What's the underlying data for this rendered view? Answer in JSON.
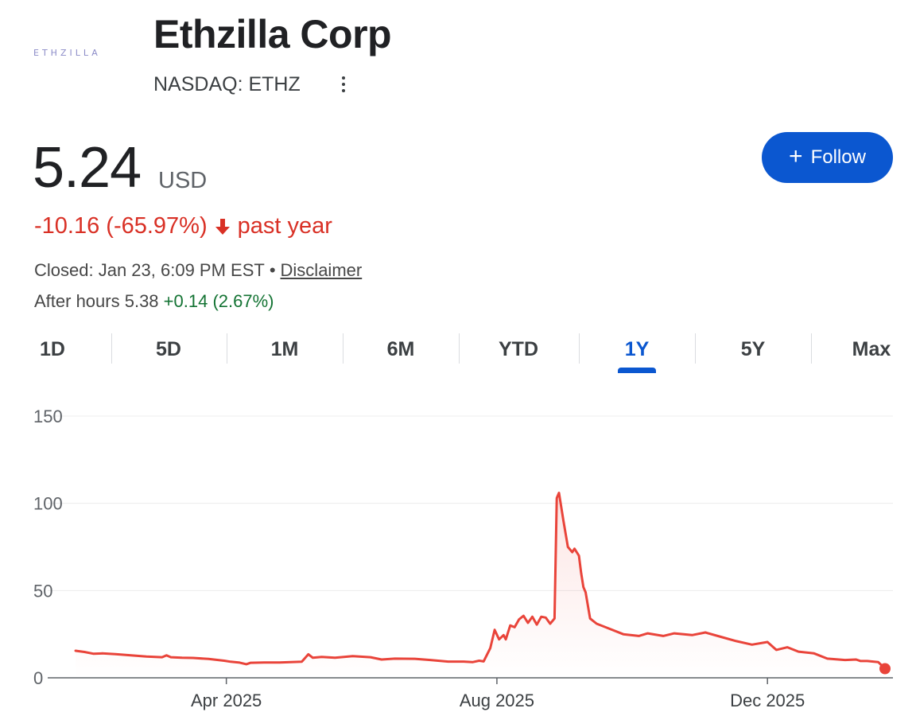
{
  "logo_text": "ETHZILLA",
  "company": {
    "name": "Ethzilla Corp",
    "ticker": "NASDAQ: ETHZ"
  },
  "quote": {
    "price": "5.24",
    "currency": "USD",
    "change": "-10.16 (-65.97%)",
    "period": "past year",
    "closed": "Closed: Jan 23, 6:09 PM EST",
    "bullet": "•",
    "disclaimer": "Disclaimer",
    "after_hours_label": "After hours 5.38",
    "after_hours_change": "+0.14 (2.67%)"
  },
  "follow_button": {
    "label": "Follow"
  },
  "colors": {
    "line": "#e9443a",
    "accent": "#0b57d0",
    "negative": "#d93025",
    "positive": "#137333"
  },
  "range_tabs": [
    {
      "label": "1D",
      "active": false
    },
    {
      "label": "5D",
      "active": false
    },
    {
      "label": "1M",
      "active": false
    },
    {
      "label": "6M",
      "active": false
    },
    {
      "label": "YTD",
      "active": false
    },
    {
      "label": "1Y",
      "active": true
    },
    {
      "label": "5Y",
      "active": false
    },
    {
      "label": "Max",
      "active": false
    }
  ],
  "chart_data": {
    "type": "line",
    "x_ticks": [
      "Apr 2025",
      "Aug 2025",
      "Dec 2025"
    ],
    "y_ticks": [
      0,
      50,
      100,
      150
    ],
    "ylim": [
      0,
      150
    ],
    "xlim": [
      "2025-01-23",
      "2026-01-23"
    ],
    "grid": true,
    "series": [
      {
        "values": [
          [
            "2025-01-23",
            15.5
          ],
          [
            "2025-01-27",
            14.8
          ],
          [
            "2025-01-31",
            13.8
          ],
          [
            "2025-02-04",
            14.0
          ],
          [
            "2025-02-10",
            13.6
          ],
          [
            "2025-02-17",
            12.9
          ],
          [
            "2025-02-24",
            12.2
          ],
          [
            "2025-03-03",
            11.8
          ],
          [
            "2025-03-05",
            12.9
          ],
          [
            "2025-03-07",
            11.8
          ],
          [
            "2025-03-12",
            11.5
          ],
          [
            "2025-03-17",
            11.4
          ],
          [
            "2025-03-24",
            10.8
          ],
          [
            "2025-03-31",
            9.8
          ],
          [
            "2025-04-03",
            9.2
          ],
          [
            "2025-04-07",
            8.7
          ],
          [
            "2025-04-10",
            7.8
          ],
          [
            "2025-04-12",
            8.6
          ],
          [
            "2025-04-18",
            8.8
          ],
          [
            "2025-04-25",
            8.8
          ],
          [
            "2025-05-05",
            9.2
          ],
          [
            "2025-05-08",
            13.5
          ],
          [
            "2025-05-10",
            11.5
          ],
          [
            "2025-05-14",
            12.0
          ],
          [
            "2025-05-20",
            11.5
          ],
          [
            "2025-05-28",
            12.4
          ],
          [
            "2025-06-05",
            11.8
          ],
          [
            "2025-06-10",
            10.5
          ],
          [
            "2025-06-16",
            11.0
          ],
          [
            "2025-06-25",
            10.9
          ],
          [
            "2025-07-02",
            10.2
          ],
          [
            "2025-07-10",
            9.3
          ],
          [
            "2025-07-17",
            9.3
          ],
          [
            "2025-07-21",
            9.0
          ],
          [
            "2025-07-24",
            9.8
          ],
          [
            "2025-07-26",
            9.4
          ],
          [
            "2025-07-29",
            17.0
          ],
          [
            "2025-07-31",
            27.5
          ],
          [
            "2025-08-02",
            22.0
          ],
          [
            "2025-08-04",
            24.5
          ],
          [
            "2025-08-05",
            22.0
          ],
          [
            "2025-08-07",
            30.0
          ],
          [
            "2025-08-09",
            29.0
          ],
          [
            "2025-08-11",
            33.5
          ],
          [
            "2025-08-13",
            35.5
          ],
          [
            "2025-08-15",
            31.5
          ],
          [
            "2025-08-17",
            35.0
          ],
          [
            "2025-08-19",
            30.5
          ],
          [
            "2025-08-21",
            35.0
          ],
          [
            "2025-08-23",
            34.5
          ],
          [
            "2025-08-25",
            31.0
          ],
          [
            "2025-08-27",
            34.0
          ],
          [
            "2025-08-28",
            103.0
          ],
          [
            "2025-08-29",
            106.0
          ],
          [
            "2025-08-31",
            90.0
          ],
          [
            "2025-09-02",
            75.0
          ],
          [
            "2025-09-04",
            72.0
          ],
          [
            "2025-09-05",
            74.0
          ],
          [
            "2025-09-07",
            70.0
          ],
          [
            "2025-09-08",
            60.0
          ],
          [
            "2025-09-09",
            52.0
          ],
          [
            "2025-09-10",
            49.0
          ],
          [
            "2025-09-12",
            34.0
          ],
          [
            "2025-09-15",
            31.0
          ],
          [
            "2025-09-20",
            28.5
          ],
          [
            "2025-09-27",
            25.0
          ],
          [
            "2025-10-04",
            24.0
          ],
          [
            "2025-10-08",
            25.5
          ],
          [
            "2025-10-15",
            24.0
          ],
          [
            "2025-10-20",
            25.5
          ],
          [
            "2025-10-28",
            24.5
          ],
          [
            "2025-11-03",
            26.0
          ],
          [
            "2025-11-10",
            23.5
          ],
          [
            "2025-11-17",
            21.0
          ],
          [
            "2025-11-24",
            19.0
          ],
          [
            "2025-12-01",
            20.5
          ],
          [
            "2025-12-05",
            16.0
          ],
          [
            "2025-12-10",
            17.5
          ],
          [
            "2025-12-15",
            15.0
          ],
          [
            "2025-12-22",
            14.0
          ],
          [
            "2025-12-28",
            11.0
          ],
          [
            "2026-01-05",
            10.2
          ],
          [
            "2026-01-10",
            10.5
          ],
          [
            "2026-01-12",
            9.6
          ],
          [
            "2026-01-15",
            9.6
          ],
          [
            "2026-01-20",
            9.0
          ],
          [
            "2026-01-23",
            5.24
          ]
        ]
      }
    ]
  }
}
